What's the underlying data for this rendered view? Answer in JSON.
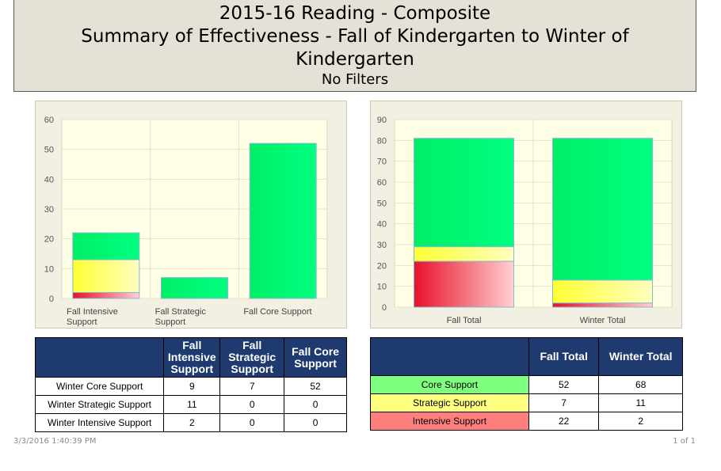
{
  "header": {
    "title": "2015-16 Reading - Composite",
    "subtitle": "Summary of Effectiveness - Fall of Kindergarten to Winter of Kindergarten",
    "filter": "No Filters"
  },
  "colors": {
    "core": "#00ee66",
    "strategic": "#ffff33",
    "intensive": "#e8102a",
    "header_bg": "#e6e1d6",
    "table_header": "#1f3a6e",
    "core_cell": "#7fff7f",
    "strategic_cell": "#ffff80",
    "intensive_cell": "#ff7f7f"
  },
  "chart_data": [
    {
      "type": "bar",
      "stacked": true,
      "categories": [
        "Fall Intensive Support",
        "Fall Strategic Support",
        "Fall Core Support"
      ],
      "series": [
        {
          "name": "Winter Intensive Support",
          "values": [
            2,
            0,
            0
          ]
        },
        {
          "name": "Winter Strategic Support",
          "values": [
            11,
            0,
            0
          ]
        },
        {
          "name": "Winter Core Support",
          "values": [
            9,
            7,
            52
          ]
        }
      ],
      "ylim": [
        0,
        60
      ],
      "yticks": [
        0,
        10,
        20,
        30,
        40,
        50,
        60
      ],
      "grid": true
    },
    {
      "type": "bar",
      "stacked": true,
      "categories": [
        "Fall Total",
        "Winter Total"
      ],
      "series": [
        {
          "name": "Intensive Support",
          "values": [
            22,
            2
          ]
        },
        {
          "name": "Strategic Support",
          "values": [
            7,
            11
          ]
        },
        {
          "name": "Core Support",
          "values": [
            52,
            68
          ]
        }
      ],
      "ylim": [
        0,
        90
      ],
      "yticks": [
        0,
        10,
        20,
        30,
        40,
        50,
        60,
        70,
        80,
        90
      ],
      "grid": true
    }
  ],
  "left_table": {
    "headers": [
      "",
      "Fall Intensive Support",
      "Fall Strategic Support",
      "Fall Core Support"
    ],
    "rows": [
      {
        "label": "Winter Core Support",
        "values": [
          "9",
          "7",
          "52"
        ]
      },
      {
        "label": "Winter Strategic Support",
        "values": [
          "11",
          "0",
          "0"
        ]
      },
      {
        "label": "Winter Intensive Support",
        "values": [
          "2",
          "0",
          "0"
        ]
      }
    ]
  },
  "right_table": {
    "headers": [
      "",
      "Fall Total",
      "Winter Total"
    ],
    "rows": [
      {
        "label": "Core Support",
        "values": [
          "52",
          "68"
        ]
      },
      {
        "label": "Strategic Support",
        "values": [
          "7",
          "11"
        ]
      },
      {
        "label": "Intensive Support",
        "values": [
          "22",
          "2"
        ]
      }
    ]
  },
  "footer": {
    "timestamp": "3/3/2016 1:40:39 PM",
    "page": "1 of 1"
  }
}
